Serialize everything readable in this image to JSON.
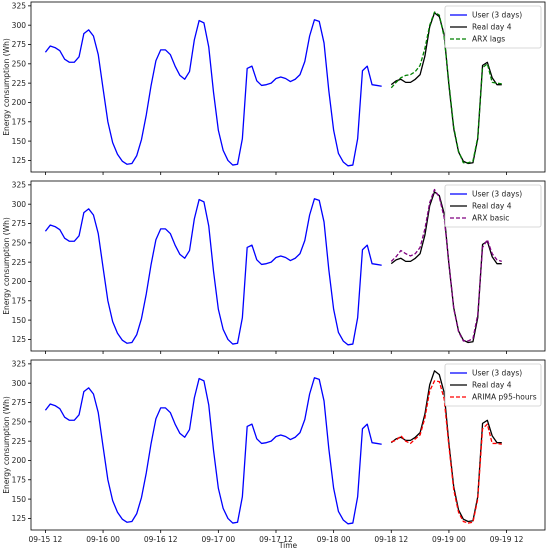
{
  "figure": {
    "xlabel": "Time",
    "ylabel": "Energy consumption (Wh)"
  },
  "chart_data": [
    {
      "type": "line",
      "title": "",
      "xlabel": "",
      "ylabel": "Energy consumption (Wh)",
      "xlim": [
        -3,
        104
      ],
      "ylim": [
        110,
        330
      ],
      "yticks": [
        125,
        150,
        175,
        200,
        225,
        250,
        275,
        300,
        325
      ],
      "xticks": [
        {
          "x": 0,
          "label": "09-15 12"
        },
        {
          "x": 12,
          "label": "09-16 00"
        },
        {
          "x": 24,
          "label": "09-16 12"
        },
        {
          "x": 36,
          "label": "09-17 00"
        },
        {
          "x": 48,
          "label": "09-17 12"
        },
        {
          "x": 60,
          "label": "09-18 00"
        },
        {
          "x": 72,
          "label": "09-18 12"
        },
        {
          "x": 84,
          "label": "09-19 00"
        },
        {
          "x": 96,
          "label": "09-19 12"
        }
      ],
      "legend_position": "top-right",
      "series": [
        {
          "name": "User (3 days)",
          "color": "#0000ff",
          "dash": "solid",
          "x_start": 0,
          "values": [
            265,
            273,
            271,
            267,
            256,
            252,
            252,
            259,
            289,
            294,
            286,
            262,
            218,
            175,
            148,
            133,
            124,
            120,
            121,
            131,
            152,
            184,
            222,
            254,
            268,
            268,
            262,
            247,
            235,
            230,
            240,
            281,
            306,
            303,
            272,
            213,
            164,
            138,
            125,
            119,
            120,
            153,
            244,
            247,
            228,
            222,
            223,
            225,
            231,
            233,
            231,
            227,
            230,
            236,
            253,
            286,
            307,
            305,
            277,
            215,
            164,
            134,
            123,
            118,
            119,
            153,
            241,
            247,
            223,
            222,
            221
          ]
        },
        {
          "name": "Real day 4",
          "color": "#000000",
          "dash": "solid",
          "x_start": 72,
          "values": [
            223,
            228,
            230,
            226,
            226,
            230,
            236,
            260,
            298,
            316,
            311,
            288,
            222,
            166,
            136,
            124,
            121,
            122,
            153,
            248,
            252,
            232,
            223,
            223
          ]
        },
        {
          "name": "ARX lags",
          "color": "#008000",
          "dash": "dashed",
          "x_start": 72,
          "values": [
            219,
            226,
            232,
            235,
            236,
            240,
            248,
            270,
            300,
            317,
            313,
            285,
            225,
            168,
            137,
            122,
            122,
            124,
            155,
            245,
            250,
            226,
            225,
            224
          ]
        }
      ]
    },
    {
      "type": "line",
      "title": "",
      "xlabel": "",
      "ylabel": "Energy consumption (Wh)",
      "xlim": [
        -3,
        104
      ],
      "ylim": [
        110,
        330
      ],
      "yticks": [
        125,
        150,
        175,
        200,
        225,
        250,
        275,
        300,
        325
      ],
      "xticks": [
        {
          "x": 0,
          "label": "09-15 12"
        },
        {
          "x": 12,
          "label": "09-16 00"
        },
        {
          "x": 24,
          "label": "09-16 12"
        },
        {
          "x": 36,
          "label": "09-17 00"
        },
        {
          "x": 48,
          "label": "09-17 12"
        },
        {
          "x": 60,
          "label": "09-18 00"
        },
        {
          "x": 72,
          "label": "09-18 12"
        },
        {
          "x": 84,
          "label": "09-19 00"
        },
        {
          "x": 96,
          "label": "09-19 12"
        }
      ],
      "legend_position": "top-right",
      "series": [
        {
          "name": "User (3 days)",
          "color": "#0000ff",
          "dash": "solid",
          "x_start": 0,
          "values": [
            265,
            273,
            271,
            267,
            256,
            252,
            252,
            259,
            289,
            294,
            286,
            262,
            218,
            175,
            148,
            133,
            124,
            120,
            121,
            131,
            152,
            184,
            222,
            254,
            268,
            268,
            262,
            247,
            235,
            230,
            240,
            281,
            306,
            303,
            272,
            213,
            164,
            138,
            125,
            119,
            120,
            153,
            244,
            247,
            228,
            222,
            223,
            225,
            231,
            233,
            231,
            227,
            230,
            236,
            253,
            286,
            307,
            305,
            277,
            215,
            164,
            134,
            123,
            118,
            119,
            153,
            241,
            247,
            223,
            222,
            221
          ]
        },
        {
          "name": "Real day 4",
          "color": "#000000",
          "dash": "solid",
          "x_start": 72,
          "values": [
            223,
            228,
            230,
            226,
            226,
            230,
            236,
            260,
            298,
            316,
            311,
            288,
            222,
            166,
            136,
            124,
            121,
            122,
            153,
            248,
            252,
            232,
            223,
            223
          ]
        },
        {
          "name": "ARX basic",
          "color": "#800080",
          "dash": "dashed",
          "x_start": 72,
          "values": [
            226,
            232,
            240,
            236,
            233,
            236,
            244,
            268,
            302,
            319,
            309,
            283,
            224,
            165,
            135,
            123,
            123,
            126,
            157,
            244,
            254,
            236,
            228,
            226
          ]
        }
      ]
    },
    {
      "type": "line",
      "title": "",
      "xlabel": "Time",
      "ylabel": "Energy consumption (Wh)",
      "xlim": [
        -3,
        104
      ],
      "ylim": [
        110,
        330
      ],
      "yticks": [
        125,
        150,
        175,
        200,
        225,
        250,
        275,
        300,
        325
      ],
      "xticks": [
        {
          "x": 0,
          "label": "09-15 12"
        },
        {
          "x": 12,
          "label": "09-16 00"
        },
        {
          "x": 24,
          "label": "09-16 12"
        },
        {
          "x": 36,
          "label": "09-17 00"
        },
        {
          "x": 48,
          "label": "09-17 12"
        },
        {
          "x": 60,
          "label": "09-18 00"
        },
        {
          "x": 72,
          "label": "09-18 12"
        },
        {
          "x": 84,
          "label": "09-19 00"
        },
        {
          "x": 96,
          "label": "09-19 12"
        }
      ],
      "legend_position": "top-right",
      "series": [
        {
          "name": "User (3 days)",
          "color": "#0000ff",
          "dash": "solid",
          "x_start": 0,
          "values": [
            265,
            273,
            271,
            267,
            256,
            252,
            252,
            259,
            289,
            294,
            286,
            262,
            218,
            175,
            148,
            133,
            124,
            120,
            121,
            131,
            152,
            184,
            222,
            254,
            268,
            268,
            262,
            247,
            235,
            230,
            240,
            281,
            306,
            303,
            272,
            213,
            164,
            138,
            125,
            119,
            120,
            153,
            244,
            247,
            228,
            222,
            223,
            225,
            231,
            233,
            231,
            227,
            230,
            236,
            253,
            286,
            307,
            305,
            277,
            215,
            164,
            134,
            123,
            118,
            119,
            153,
            241,
            247,
            223,
            222,
            221
          ]
        },
        {
          "name": "Real day 4",
          "color": "#000000",
          "dash": "solid",
          "x_start": 72,
          "values": [
            223,
            228,
            230,
            226,
            226,
            230,
            236,
            260,
            298,
            316,
            311,
            288,
            222,
            166,
            136,
            124,
            121,
            122,
            153,
            248,
            252,
            232,
            223,
            223
          ]
        },
        {
          "name": "ARIMA p95-hours",
          "color": "#ff0000",
          "dash": "dashed",
          "x_start": 72,
          "values": [
            224,
            226,
            232,
            225,
            222,
            228,
            233,
            255,
            290,
            303,
            302,
            280,
            218,
            162,
            133,
            121,
            119,
            120,
            150,
            241,
            247,
            222,
            222,
            221
          ]
        }
      ]
    }
  ]
}
